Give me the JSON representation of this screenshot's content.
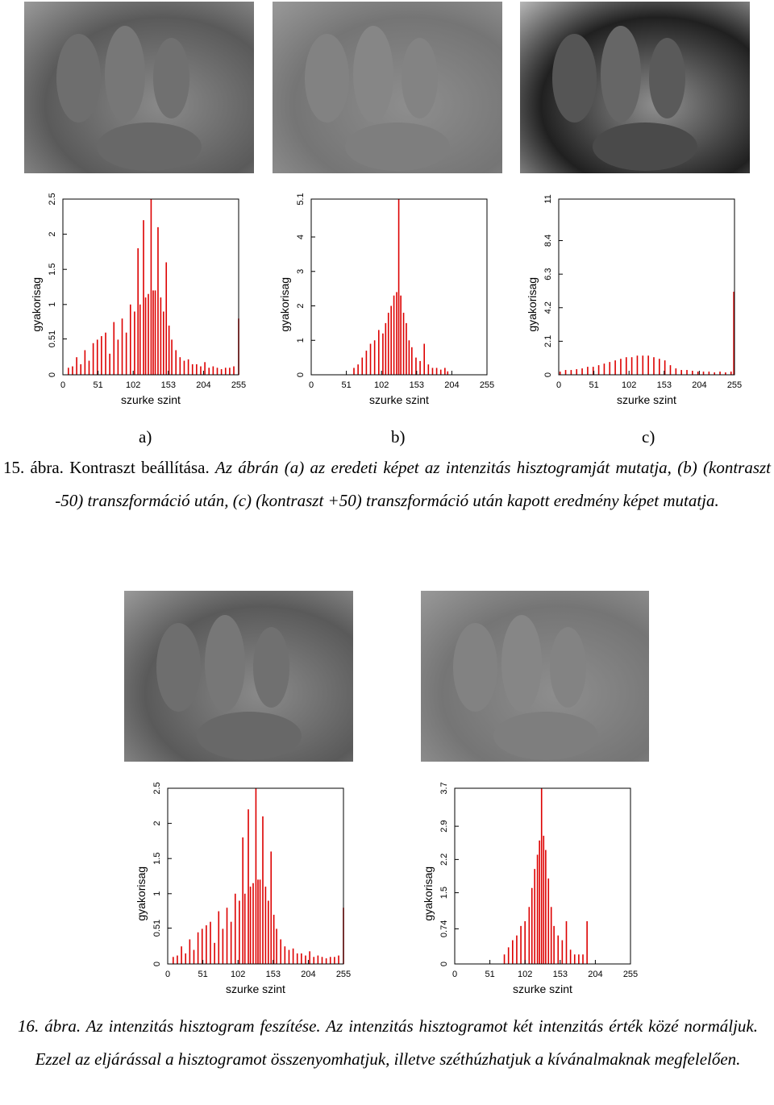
{
  "figure15": {
    "panels": [
      "a)",
      "b)",
      "c)"
    ],
    "label": "15. ábra.",
    "title": "Kontraszt beállítása.",
    "text": "Az ábrán (a) az eredeti képet az intenzitás hisztogramját mutatja, (b) (kontraszt -50) transzformáció után, (c) (kontraszt +50) transzformáció után kapott eredmény képet mutatja."
  },
  "figure16": {
    "label": "16. ábra.",
    "title": "Az intenzitás hisztogram feszítése.",
    "text": "Az intenzitás hisztogramot két intenzitás érték közé normáljuk. Ezzel az eljárással a hisztogramot összenyomhatjuk, illetve széthúzhatjuk a kívánalmaknak megfelelően."
  },
  "chart_data": [
    {
      "type": "bar",
      "xlabel": "szurke szint",
      "ylabel": "gyakorisag",
      "color": "#dd0000",
      "x": [
        8,
        14,
        20,
        26,
        32,
        38,
        44,
        50,
        56,
        62,
        68,
        74,
        80,
        86,
        92,
        98,
        104,
        109,
        112,
        117,
        120,
        124,
        128,
        131,
        134,
        138,
        142,
        146,
        150,
        154,
        158,
        164,
        170,
        176,
        182,
        188,
        194,
        200,
        206,
        212,
        218,
        224,
        230,
        236,
        242,
        248,
        255
      ],
      "values": [
        0.1,
        0.12,
        0.25,
        0.15,
        0.35,
        0.2,
        0.45,
        0.5,
        0.55,
        0.6,
        0.3,
        0.75,
        0.5,
        0.8,
        0.6,
        1.0,
        0.9,
        1.8,
        1.0,
        2.2,
        1.1,
        1.15,
        2.5,
        1.2,
        1.2,
        2.1,
        1.1,
        0.9,
        1.6,
        0.7,
        0.5,
        0.35,
        0.25,
        0.2,
        0.22,
        0.15,
        0.15,
        0.12,
        0.18,
        0.1,
        0.12,
        0.1,
        0.08,
        0.1,
        0.1,
        0.12,
        0.8
      ],
      "xlim": [
        0,
        255
      ],
      "xticks": [
        0,
        51,
        102,
        153,
        204,
        255
      ],
      "ylim": [
        0,
        2.5
      ],
      "yticks": [
        0,
        0.51,
        1,
        1.5,
        2,
        2.5
      ]
    },
    {
      "type": "bar",
      "xlabel": "szurke szint",
      "ylabel": "gyakorisag",
      "color": "#dd0000",
      "x": [
        62,
        68,
        74,
        80,
        86,
        92,
        98,
        104,
        108,
        112,
        116,
        120,
        124,
        127,
        130,
        134,
        138,
        142,
        146,
        152,
        158,
        164,
        170,
        176,
        182,
        188,
        194,
        198
      ],
      "values": [
        0.2,
        0.3,
        0.5,
        0.7,
        0.9,
        1.0,
        1.3,
        1.2,
        1.5,
        1.8,
        2.0,
        2.3,
        2.4,
        5.1,
        2.3,
        1.8,
        1.5,
        1.0,
        0.8,
        0.5,
        0.4,
        0.9,
        0.3,
        0.2,
        0.2,
        0.15,
        0.2,
        0.1
      ],
      "xlim": [
        0,
        255
      ],
      "xticks": [
        0,
        51,
        102,
        153,
        204,
        255
      ],
      "ylim": [
        0,
        5.1
      ],
      "yticks": [
        0,
        1,
        2,
        3,
        4,
        5.1
      ]
    },
    {
      "type": "bar",
      "xlabel": "szurke szint",
      "ylabel": "gyakorisag",
      "color": "#dd0000",
      "x": [
        2,
        10,
        18,
        26,
        34,
        42,
        50,
        58,
        66,
        74,
        82,
        90,
        98,
        106,
        114,
        122,
        130,
        138,
        146,
        154,
        162,
        170,
        178,
        186,
        194,
        202,
        210,
        218,
        226,
        234,
        242,
        250,
        254
      ],
      "values": [
        0.2,
        0.3,
        0.3,
        0.35,
        0.4,
        0.5,
        0.5,
        0.6,
        0.7,
        0.8,
        0.9,
        1.0,
        1.1,
        1.1,
        1.2,
        1.2,
        1.2,
        1.1,
        1.0,
        0.9,
        0.6,
        0.4,
        0.3,
        0.3,
        0.25,
        0.2,
        0.2,
        0.2,
        0.15,
        0.2,
        0.15,
        0.2,
        5.2
      ],
      "xlim": [
        0,
        255
      ],
      "xticks": [
        0,
        51,
        102,
        153,
        204,
        255
      ],
      "ylim": [
        0,
        11
      ],
      "yticks": [
        0,
        2.1,
        4.2,
        6.3,
        8.4,
        11
      ]
    },
    {
      "type": "bar",
      "xlabel": "szurke szint",
      "ylabel": "gyakorisag",
      "color": "#dd0000",
      "x": [
        8,
        14,
        20,
        26,
        32,
        38,
        44,
        50,
        56,
        62,
        68,
        74,
        80,
        86,
        92,
        98,
        104,
        109,
        112,
        117,
        120,
        124,
        128,
        131,
        134,
        138,
        142,
        146,
        150,
        154,
        158,
        164,
        170,
        176,
        182,
        188,
        194,
        200,
        206,
        212,
        218,
        224,
        230,
        236,
        242,
        248,
        255
      ],
      "values": [
        0.1,
        0.12,
        0.25,
        0.15,
        0.35,
        0.2,
        0.45,
        0.5,
        0.55,
        0.6,
        0.3,
        0.75,
        0.5,
        0.8,
        0.6,
        1.0,
        0.9,
        1.8,
        1.0,
        2.2,
        1.1,
        1.15,
        2.5,
        1.2,
        1.2,
        2.1,
        1.1,
        0.9,
        1.6,
        0.7,
        0.5,
        0.35,
        0.25,
        0.2,
        0.22,
        0.15,
        0.15,
        0.12,
        0.18,
        0.1,
        0.12,
        0.1,
        0.08,
        0.1,
        0.1,
        0.12,
        0.8
      ],
      "xlim": [
        0,
        255
      ],
      "xticks": [
        0,
        51,
        102,
        153,
        204,
        255
      ],
      "ylim": [
        0,
        2.5
      ],
      "yticks": [
        0,
        0.51,
        1,
        1.5,
        2,
        2.5
      ]
    },
    {
      "type": "bar",
      "xlabel": "szurke szint",
      "ylabel": "gyakorisag",
      "color": "#dd0000",
      "x": [
        72,
        78,
        84,
        90,
        96,
        102,
        108,
        112,
        116,
        120,
        123,
        126,
        129,
        132,
        136,
        140,
        144,
        150,
        156,
        162,
        168,
        174,
        180,
        186,
        192
      ],
      "values": [
        0.2,
        0.35,
        0.5,
        0.6,
        0.8,
        0.9,
        1.2,
        1.6,
        2.0,
        2.3,
        2.6,
        3.7,
        2.7,
        2.4,
        1.8,
        1.2,
        0.8,
        0.6,
        0.5,
        0.9,
        0.3,
        0.2,
        0.2,
        0.2,
        0.9
      ],
      "xlim": [
        0,
        255
      ],
      "xticks": [
        0,
        51,
        102,
        153,
        204,
        255
      ],
      "ylim": [
        0,
        3.7
      ],
      "yticks": [
        0,
        0.74,
        1.5,
        2.2,
        2.9,
        3.7
      ]
    }
  ]
}
